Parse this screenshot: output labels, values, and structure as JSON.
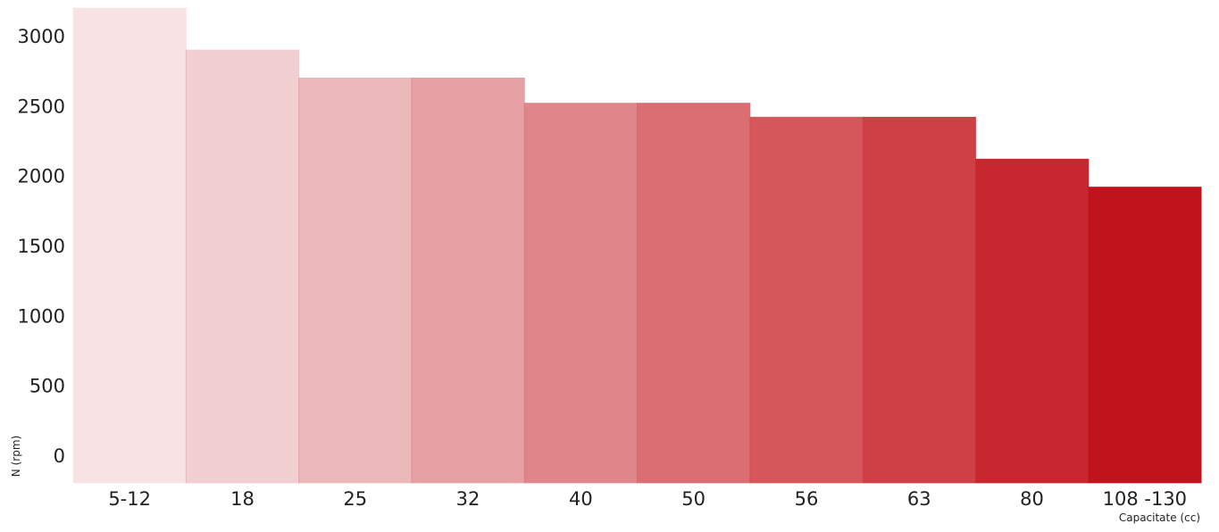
{
  "chart_data": {
    "type": "bar",
    "title": "",
    "xlabel": "Capacitate (cc)",
    "ylabel": "N (rpm)",
    "categories": [
      "5-12",
      "18",
      "25",
      "32",
      "40",
      "50",
      "56",
      "63",
      "80",
      "108 -130"
    ],
    "values": [
      3200,
      2900,
      2700,
      2700,
      2520,
      2520,
      2420,
      2420,
      2120,
      1920
    ],
    "yticks": [
      "0",
      "500",
      "1000",
      "1500",
      "2000",
      "2500",
      "3000"
    ],
    "ylim": [
      -200,
      3200
    ],
    "grid": false,
    "legend": "none",
    "bar_colors": [
      "#f7e3e4",
      "#f2cfd1",
      "#ebb8ba",
      "#e6a0a4",
      "#e0868a",
      "#da6e72",
      "#d5575c",
      "#cf4046",
      "#c8272f",
      "#c1131b"
    ]
  }
}
